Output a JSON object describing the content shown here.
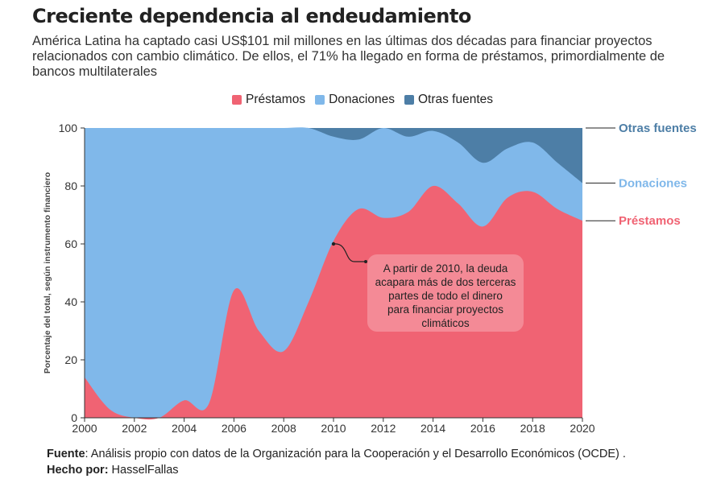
{
  "header": {
    "title": "Creciente dependencia al endeudamiento",
    "subtitle": "América Latina ha captado casi US$101 mil millones en las últimas dos décadas para financiar proyectos relacionados con cambio climático. De ellos, el 71% ha llegado en forma de préstamos, primordialmente de bancos multilaterales"
  },
  "legend": [
    {
      "label": "Préstamos",
      "color": "#f06373"
    },
    {
      "label": "Donaciones",
      "color": "#80b8ea"
    },
    {
      "label": "Otras fuentes",
      "color": "#4d7ea6"
    }
  ],
  "annotation": {
    "text": "A partir de 2010, la deuda acapara más de dos terceras partes de todo el dinero para financiar proyectos climáticos",
    "year": 2010,
    "value": 60
  },
  "end_labels": {
    "otras": "Otras fuentes",
    "donaciones": "Donaciones",
    "prestamos": "Préstamos"
  },
  "footer": {
    "fuente_label": "Fuente",
    "fuente_text": ": Análisis propio con datos de la Organización para la Cooperación y el Desarrollo Económicos (OCDE)  . ",
    "hecho_label": "Hecho por:",
    "hecho_text": " HasselFallas"
  },
  "chart_data": {
    "type": "area",
    "stacked": true,
    "percent": true,
    "x": [
      2000,
      2001,
      2002,
      2003,
      2004,
      2005,
      2006,
      2007,
      2008,
      2009,
      2010,
      2011,
      2012,
      2013,
      2014,
      2015,
      2016,
      2017,
      2018,
      2019,
      2020
    ],
    "series": [
      {
        "name": "Préstamos",
        "color": "#f06373",
        "values": [
          14,
          3,
          0,
          0,
          6,
          5,
          44,
          30,
          23,
          40,
          61,
          72,
          69,
          71,
          80,
          74,
          66,
          76,
          78,
          72,
          68
        ]
      },
      {
        "name": "Donaciones",
        "color": "#80b8ea",
        "values": [
          86,
          97,
          100,
          100,
          94,
          95,
          56,
          70,
          77,
          60,
          36,
          24,
          31,
          26,
          19,
          21,
          22,
          17,
          17,
          16,
          13
        ]
      },
      {
        "name": "Otras fuentes",
        "color": "#4d7ea6",
        "values": [
          0,
          0,
          0,
          0,
          0,
          0,
          0,
          0,
          0,
          0,
          3,
          4,
          0,
          3,
          1,
          5,
          12,
          7,
          5,
          12,
          19
        ]
      }
    ],
    "xlim": [
      2000,
      2020
    ],
    "ylim": [
      0,
      100
    ],
    "x_ticks": [
      2000,
      2002,
      2004,
      2006,
      2008,
      2010,
      2012,
      2014,
      2016,
      2018,
      2020
    ],
    "y_ticks": [
      0,
      20,
      40,
      60,
      80,
      100
    ],
    "ylabel": "Porcentaje del total, según instrumento financiero",
    "xlabel": "",
    "grid": false,
    "legend_position": "top-center"
  }
}
